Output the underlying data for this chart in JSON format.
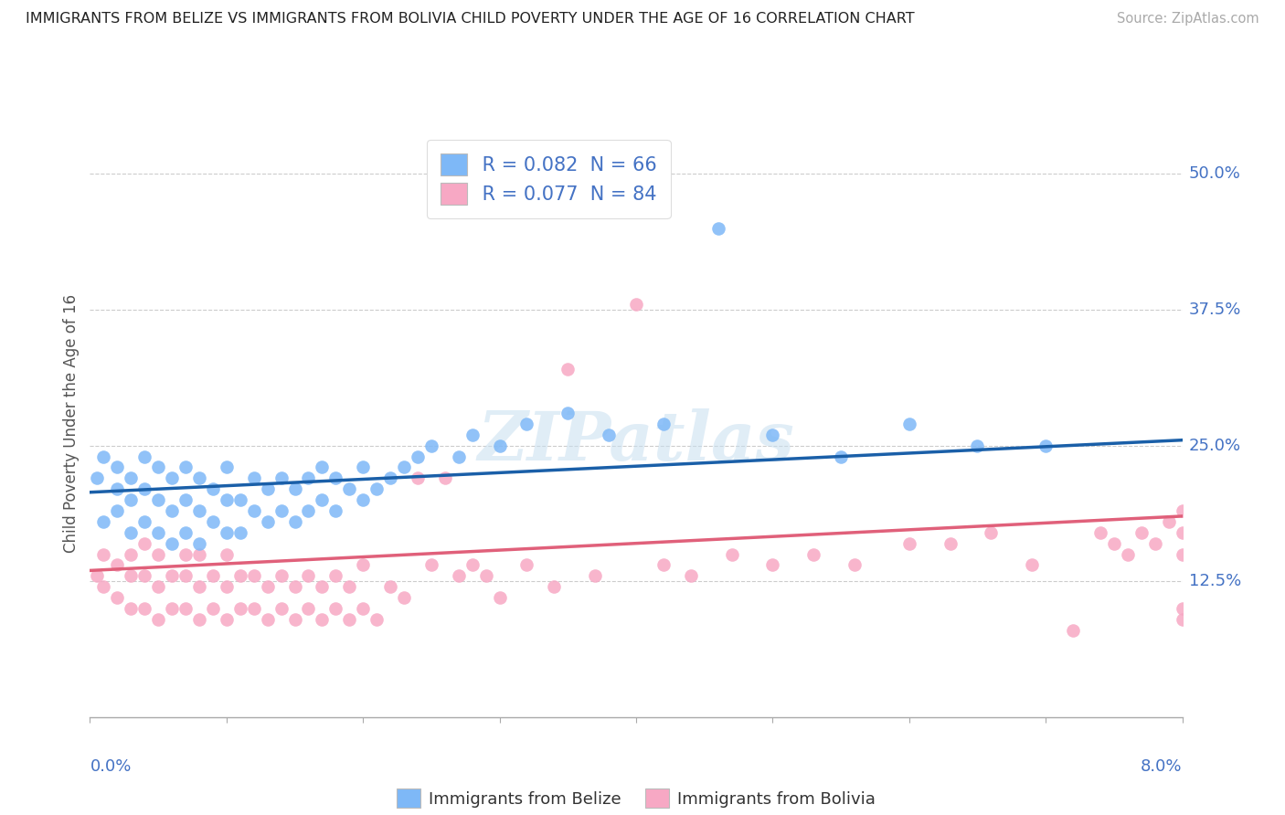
{
  "title": "IMMIGRANTS FROM BELIZE VS IMMIGRANTS FROM BOLIVIA CHILD POVERTY UNDER THE AGE OF 16 CORRELATION CHART",
  "source": "Source: ZipAtlas.com",
  "ylabel": "Child Poverty Under the Age of 16",
  "xlim": [
    0.0,
    0.08
  ],
  "ylim": [
    0.0,
    0.54
  ],
  "xtick_positions": [
    0.0,
    0.01,
    0.02,
    0.03,
    0.04,
    0.05,
    0.06,
    0.07,
    0.08
  ],
  "ytick_positions": [
    0.125,
    0.25,
    0.375,
    0.5
  ],
  "ytick_labels": [
    "12.5%",
    "25.0%",
    "37.5%",
    "50.0%"
  ],
  "belize_color": "#7EB8F7",
  "bolivia_color": "#F7A8C4",
  "belize_line_color": "#1A5FA8",
  "bolivia_line_color": "#E0607A",
  "legend_text_color": "#4472C4",
  "axis_label_color": "#4472C4",
  "belize_R": 0.082,
  "belize_N": 66,
  "bolivia_R": 0.077,
  "bolivia_N": 84,
  "watermark": "ZIPatlas",
  "belize_x": [
    0.0005,
    0.001,
    0.001,
    0.002,
    0.002,
    0.002,
    0.003,
    0.003,
    0.003,
    0.004,
    0.004,
    0.004,
    0.005,
    0.005,
    0.005,
    0.006,
    0.006,
    0.006,
    0.007,
    0.007,
    0.007,
    0.008,
    0.008,
    0.008,
    0.009,
    0.009,
    0.01,
    0.01,
    0.01,
    0.011,
    0.011,
    0.012,
    0.012,
    0.013,
    0.013,
    0.014,
    0.014,
    0.015,
    0.015,
    0.016,
    0.016,
    0.017,
    0.017,
    0.018,
    0.018,
    0.019,
    0.02,
    0.02,
    0.021,
    0.022,
    0.023,
    0.024,
    0.025,
    0.027,
    0.028,
    0.03,
    0.032,
    0.035,
    0.038,
    0.042,
    0.046,
    0.05,
    0.055,
    0.06,
    0.065,
    0.07
  ],
  "belize_y": [
    0.22,
    0.18,
    0.24,
    0.19,
    0.21,
    0.23,
    0.17,
    0.2,
    0.22,
    0.18,
    0.21,
    0.24,
    0.17,
    0.2,
    0.23,
    0.16,
    0.19,
    0.22,
    0.17,
    0.2,
    0.23,
    0.16,
    0.19,
    0.22,
    0.18,
    0.21,
    0.17,
    0.2,
    0.23,
    0.17,
    0.2,
    0.19,
    0.22,
    0.18,
    0.21,
    0.19,
    0.22,
    0.18,
    0.21,
    0.19,
    0.22,
    0.2,
    0.23,
    0.19,
    0.22,
    0.21,
    0.2,
    0.23,
    0.21,
    0.22,
    0.23,
    0.24,
    0.25,
    0.24,
    0.26,
    0.25,
    0.27,
    0.28,
    0.26,
    0.27,
    0.45,
    0.26,
    0.24,
    0.27,
    0.25,
    0.25
  ],
  "bolivia_x": [
    0.0005,
    0.001,
    0.001,
    0.002,
    0.002,
    0.003,
    0.003,
    0.003,
    0.004,
    0.004,
    0.004,
    0.005,
    0.005,
    0.005,
    0.006,
    0.006,
    0.007,
    0.007,
    0.007,
    0.008,
    0.008,
    0.008,
    0.009,
    0.009,
    0.01,
    0.01,
    0.01,
    0.011,
    0.011,
    0.012,
    0.012,
    0.013,
    0.013,
    0.014,
    0.014,
    0.015,
    0.015,
    0.016,
    0.016,
    0.017,
    0.017,
    0.018,
    0.018,
    0.019,
    0.019,
    0.02,
    0.02,
    0.021,
    0.022,
    0.023,
    0.024,
    0.025,
    0.026,
    0.027,
    0.028,
    0.029,
    0.03,
    0.032,
    0.034,
    0.035,
    0.037,
    0.04,
    0.042,
    0.044,
    0.047,
    0.05,
    0.053,
    0.056,
    0.06,
    0.063,
    0.066,
    0.069,
    0.072,
    0.074,
    0.075,
    0.076,
    0.077,
    0.078,
    0.079,
    0.08,
    0.08,
    0.08,
    0.08,
    0.08
  ],
  "bolivia_y": [
    0.13,
    0.12,
    0.15,
    0.11,
    0.14,
    0.1,
    0.13,
    0.15,
    0.1,
    0.13,
    0.16,
    0.09,
    0.12,
    0.15,
    0.1,
    0.13,
    0.1,
    0.13,
    0.15,
    0.09,
    0.12,
    0.15,
    0.1,
    0.13,
    0.09,
    0.12,
    0.15,
    0.1,
    0.13,
    0.1,
    0.13,
    0.09,
    0.12,
    0.1,
    0.13,
    0.09,
    0.12,
    0.1,
    0.13,
    0.09,
    0.12,
    0.1,
    0.13,
    0.09,
    0.12,
    0.1,
    0.14,
    0.09,
    0.12,
    0.11,
    0.22,
    0.14,
    0.22,
    0.13,
    0.14,
    0.13,
    0.11,
    0.14,
    0.12,
    0.32,
    0.13,
    0.38,
    0.14,
    0.13,
    0.15,
    0.14,
    0.15,
    0.14,
    0.16,
    0.16,
    0.17,
    0.14,
    0.08,
    0.17,
    0.16,
    0.15,
    0.17,
    0.16,
    0.18,
    0.17,
    0.09,
    0.1,
    0.15,
    0.19
  ]
}
